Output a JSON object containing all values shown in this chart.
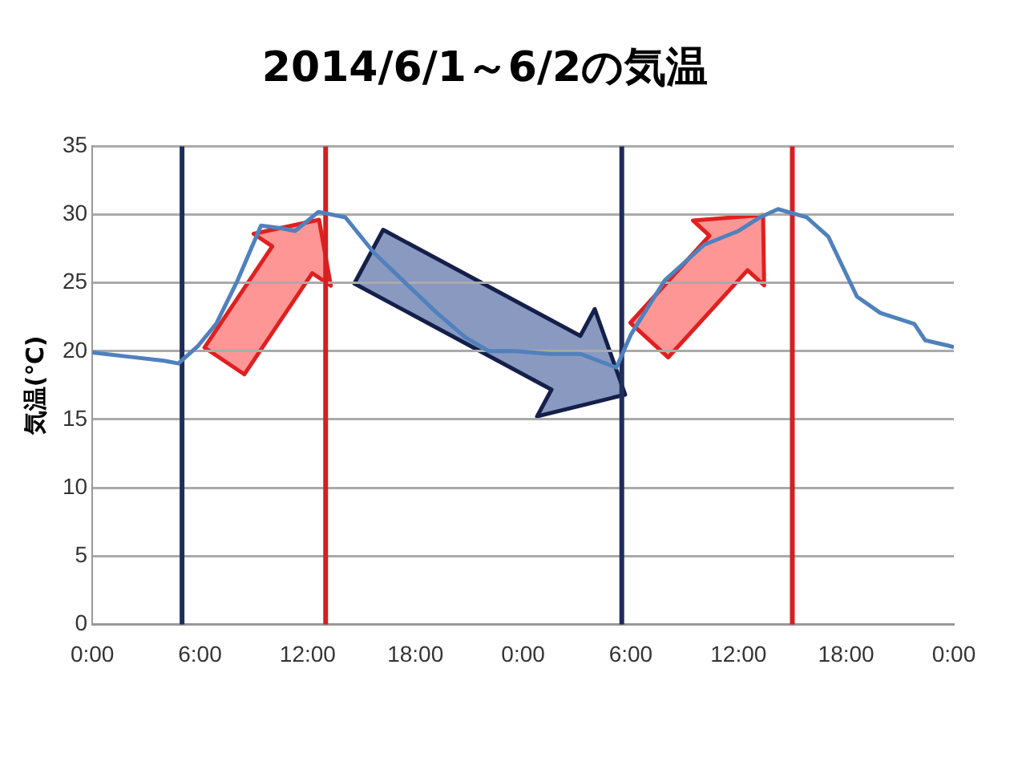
{
  "chart_data": {
    "type": "line",
    "title": "2014/6/1～6/2の気温",
    "ylabel": "気温(℃)",
    "series": [
      {
        "color": "#4f81bd",
        "x": [
          "2014-06-01T00:00",
          "2014-06-01T02:00",
          "2014-06-01T04:00",
          "2014-06-01T04:48",
          "2014-06-01T05:54",
          "2014-06-01T06:54",
          "2014-06-01T08:06",
          "2014-06-01T09:24",
          "2014-06-01T10:30",
          "2014-06-01T11:18",
          "2014-06-01T12:36",
          "2014-06-01T14:06",
          "2014-06-01T15:42",
          "2014-06-01T17:36",
          "2014-06-01T19:12",
          "2014-06-01T20:48",
          "2014-06-01T22:06",
          "2014-06-01T23:36",
          "2014-06-02T01:30",
          "2014-06-02T03:12",
          "2014-06-02T05:12",
          "2014-06-02T06:00",
          "2014-06-02T07:54",
          "2014-06-02T10:06",
          "2014-06-02T12:00",
          "2014-06-02T13:12",
          "2014-06-02T14:12",
          "2014-06-02T15:48",
          "2014-06-02T17:00",
          "2014-06-02T18:36",
          "2014-06-02T19:54",
          "2014-06-02T21:48",
          "2014-06-02T22:24",
          "2014-06-02T23:42",
          "2014-06-03T00:00"
        ],
        "values": [
          19.9,
          19.6,
          19.3,
          19.1,
          20.4,
          22,
          25.2,
          29.2,
          29,
          28.8,
          30.2,
          29.8,
          27.2,
          24.8,
          22.8,
          21,
          20,
          20,
          19.8,
          19.8,
          18.8,
          21.2,
          25.2,
          27.8,
          28.8,
          29.8,
          30.4,
          29.8,
          28.4,
          24,
          22.8,
          22,
          20.8,
          20.4,
          20.3
        ]
      }
    ],
    "xlim": [
      "2014-06-01T00:00",
      "2014-06-03T00:00"
    ],
    "xticks": [
      {
        "value": "2014-06-01T00:00",
        "label": "0:00"
      },
      {
        "value": "2014-06-01T06:00",
        "label": "6:00"
      },
      {
        "value": "2014-06-01T12:00",
        "label": "12:00"
      },
      {
        "value": "2014-06-01T18:00",
        "label": "18:00"
      },
      {
        "value": "2014-06-02T00:00",
        "label": "0:00"
      },
      {
        "value": "2014-06-02T06:00",
        "label": "6:00"
      },
      {
        "value": "2014-06-02T12:00",
        "label": "12:00"
      },
      {
        "value": "2014-06-02T18:00",
        "label": "18:00"
      },
      {
        "value": "2014-06-03T00:00",
        "label": "0:00"
      }
    ],
    "ylim": [
      0,
      35
    ],
    "yticks": [
      0,
      5,
      10,
      15,
      20,
      25,
      30,
      35
    ],
    "grid": "y",
    "legend": false,
    "marker": "none",
    "line_style": "solid",
    "ref_lines": [
      {
        "axis": "x",
        "value": "2014-06-01T05:00",
        "color": "#1f2d5a"
      },
      {
        "axis": "x",
        "value": "2014-06-01T13:00",
        "color": "#d42020"
      },
      {
        "axis": "x",
        "value": "2014-06-02T05:30",
        "color": "#1f2d5a"
      },
      {
        "axis": "x",
        "value": "2014-06-02T15:00",
        "color": "#d42020"
      }
    ]
  }
}
